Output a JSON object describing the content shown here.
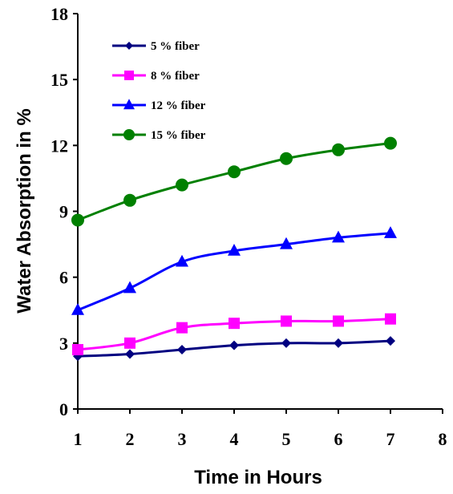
{
  "chart_data": {
    "type": "line",
    "title": "",
    "xlabel": "Time in Hours",
    "ylabel": "Water Absorption in %",
    "x": [
      1,
      2,
      3,
      4,
      5,
      6,
      7
    ],
    "xlim": [
      1,
      8
    ],
    "ylim": [
      0,
      18
    ],
    "xticks": [
      "1",
      "2",
      "3",
      "4",
      "5",
      "6",
      "7",
      "8"
    ],
    "yticks": [
      "0",
      "3",
      "6",
      "9",
      "12",
      "15",
      "18"
    ],
    "grid": false,
    "legend_position": "top-left",
    "series": [
      {
        "name": "5 % fiber",
        "marker": "diamond",
        "color": "#000080",
        "values": [
          2.4,
          2.5,
          2.7,
          2.9,
          3.0,
          3.0,
          3.1
        ]
      },
      {
        "name": "8 % fiber",
        "marker": "square",
        "color": "#FF00FF",
        "values": [
          2.7,
          3.0,
          3.7,
          3.9,
          4.0,
          4.0,
          4.1
        ]
      },
      {
        "name": "12 % fiber",
        "marker": "triangle",
        "color": "#0000FF",
        "values": [
          4.5,
          5.5,
          6.7,
          7.2,
          7.5,
          7.8,
          8.0
        ]
      },
      {
        "name": "15 % fiber",
        "marker": "circle",
        "color": "#008000",
        "values": [
          8.6,
          9.5,
          10.2,
          10.8,
          11.4,
          11.8,
          12.1
        ]
      }
    ]
  }
}
